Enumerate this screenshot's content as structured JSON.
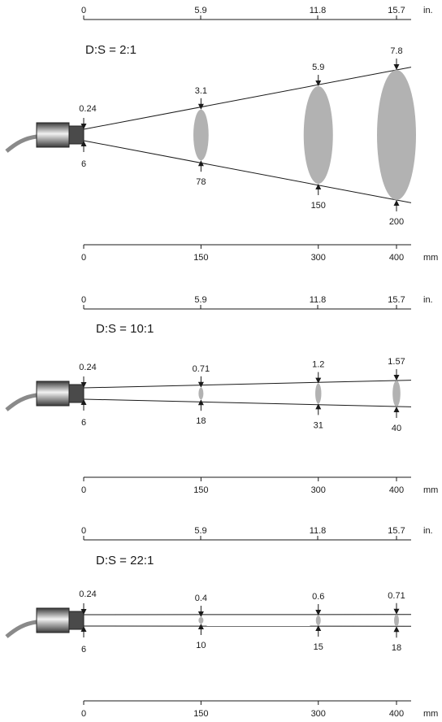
{
  "colors": {
    "spot": "#b2b2b2",
    "line": "#1a1a1a",
    "sensor_tip": "#4a4a4a",
    "sensor_body_dark": "#3a3a3a",
    "sensor_body_light": "#f2f2f2",
    "cable": "#8a8a8a"
  },
  "panels": [
    {
      "title": "D:S = 2:1",
      "inch_ticks": [
        "0",
        "5.9",
        "11.8",
        "15.7"
      ],
      "inch_unit": "in.",
      "mm_ticks": [
        "0",
        "150",
        "300",
        "400"
      ],
      "mm_unit": "mm",
      "origin": {
        "top": "0.24",
        "bottom": "6"
      },
      "spots": [
        {
          "distance_mm": 150,
          "top": "3.1",
          "bottom": "78",
          "size_mm": 78
        },
        {
          "distance_mm": 300,
          "top": "5.9",
          "bottom": "150",
          "size_mm": 150
        },
        {
          "distance_mm": 400,
          "top": "7.8",
          "bottom": "200",
          "size_mm": 200
        }
      ]
    },
    {
      "title": "D:S = 10:1",
      "inch_ticks": [
        "0",
        "5.9",
        "11.8",
        "15.7"
      ],
      "inch_unit": "in.",
      "mm_ticks": [
        "0",
        "150",
        "300",
        "400"
      ],
      "mm_unit": "mm",
      "origin": {
        "top": "0.24",
        "bottom": "6"
      },
      "spots": [
        {
          "distance_mm": 150,
          "top": "0.71",
          "bottom": "18",
          "size_mm": 18
        },
        {
          "distance_mm": 300,
          "top": "1.2",
          "bottom": "31",
          "size_mm": 31
        },
        {
          "distance_mm": 400,
          "top": "1.57",
          "bottom": "40",
          "size_mm": 40
        }
      ]
    },
    {
      "title": "D:S = 22:1",
      "inch_ticks": [
        "0",
        "5.9",
        "11.8",
        "15.7"
      ],
      "inch_unit": "in.",
      "mm_ticks": [
        "0",
        "150",
        "300",
        "400"
      ],
      "mm_unit": "mm",
      "origin": {
        "top": "0.24",
        "bottom": "6"
      },
      "spots": [
        {
          "distance_mm": 150,
          "top": "0.4",
          "bottom": "10",
          "size_mm": 10
        },
        {
          "distance_mm": 300,
          "top": "0.6",
          "bottom": "15",
          "size_mm": 15
        },
        {
          "distance_mm": 400,
          "top": "0.71",
          "bottom": "18",
          "size_mm": 18
        }
      ]
    }
  ]
}
